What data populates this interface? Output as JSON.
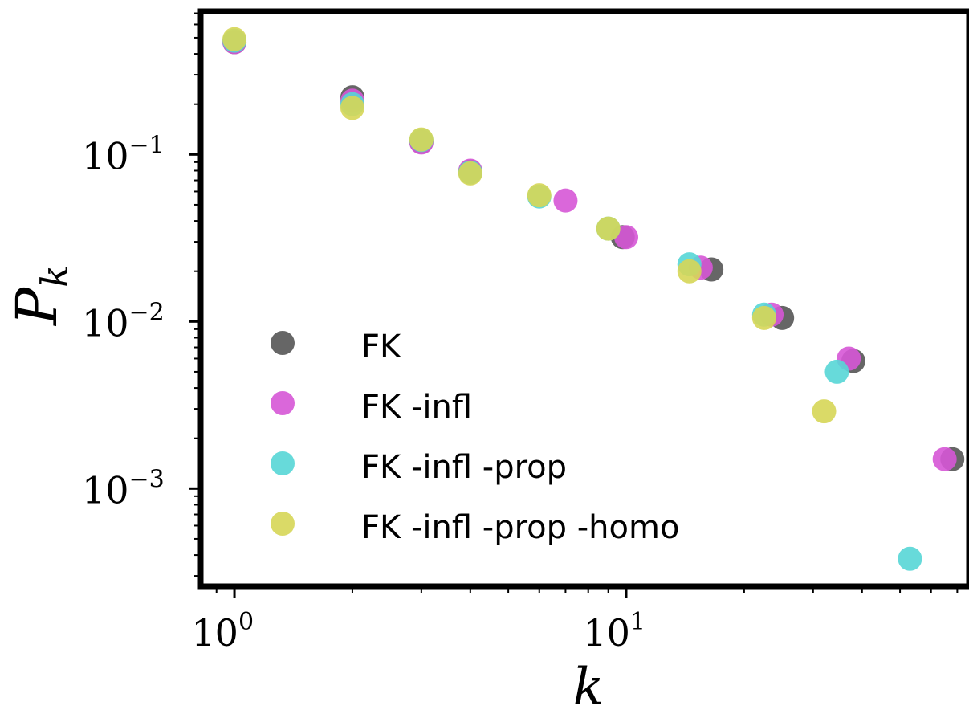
{
  "chart_data": {
    "type": "scatter",
    "xscale": "log",
    "yscale": "log",
    "xlim": [
      0.82,
      75
    ],
    "ylim": [
      0.00026,
      0.72
    ],
    "xlabel": "k",
    "ylabel": "P_k",
    "ylabel_display": {
      "base": "P",
      "sub": "k"
    },
    "xticks": [
      {
        "value": 1,
        "base": "10",
        "exp": "0"
      },
      {
        "value": 10,
        "base": "10",
        "exp": "1"
      }
    ],
    "yticks": [
      {
        "value": 0.1,
        "base": "10",
        "exp": "−1"
      },
      {
        "value": 0.01,
        "base": "10",
        "exp": "−2"
      },
      {
        "value": 0.001,
        "base": "10",
        "exp": "−3"
      }
    ],
    "legend_position": "lower-left",
    "series": [
      {
        "name": "FK",
        "color": "#555555",
        "x": [
          1,
          2,
          3,
          4,
          9.8,
          16.5,
          25,
          38,
          68
        ],
        "y": [
          0.47,
          0.22,
          0.119,
          0.079,
          0.032,
          0.0205,
          0.0105,
          0.0058,
          0.0015
        ]
      },
      {
        "name": "FK -infl",
        "color": "#d656d6",
        "x": [
          1,
          2,
          3,
          4,
          7,
          10,
          15.5,
          23.5,
          37,
          65
        ],
        "y": [
          0.47,
          0.21,
          0.118,
          0.08,
          0.053,
          0.032,
          0.021,
          0.011,
          0.006,
          0.0015
        ]
      },
      {
        "name": "FK -infl -prop",
        "color": "#56d6d6",
        "x": [
          1,
          2,
          3,
          4,
          6,
          9,
          14.5,
          22.5,
          34.5,
          53
        ],
        "y": [
          0.48,
          0.2,
          0.122,
          0.078,
          0.056,
          0.036,
          0.022,
          0.011,
          0.005,
          0.00038
        ]
      },
      {
        "name": "FK -infl -prop -homo",
        "color": "#d6d656",
        "x": [
          1,
          2,
          3,
          4,
          6,
          9,
          14.5,
          22.5,
          32
        ],
        "y": [
          0.49,
          0.19,
          0.123,
          0.077,
          0.057,
          0.036,
          0.02,
          0.0105,
          0.0029
        ]
      }
    ]
  }
}
